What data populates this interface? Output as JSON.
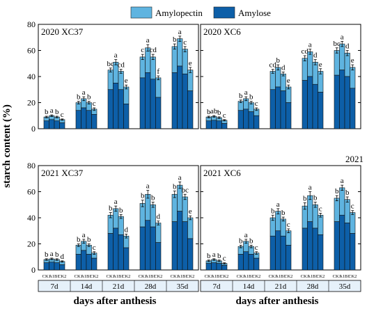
{
  "legend": {
    "amylopectin": "Amylopectin",
    "amylose": "Amylose",
    "amylopectin_color": "#5fb4e0",
    "amylose_color": "#0d5fa8"
  },
  "ylabel": "starch content (%)",
  "xlabel": "days after anthesis",
  "extra_label": "2021",
  "chart_data": [
    {
      "type": "bar",
      "stacked": true,
      "title": "2020  XC37",
      "groups": [
        "7d",
        "14d",
        "21d",
        "28d",
        "35d"
      ],
      "sublabels": [
        "CK1",
        "A1",
        "B1",
        "CK2"
      ],
      "ylim": [
        0,
        80
      ],
      "yticks": [
        0,
        20,
        40,
        60,
        80
      ],
      "total": [
        [
          9,
          10,
          9,
          7
        ],
        [
          20,
          23,
          20,
          15
        ],
        [
          45,
          51,
          44,
          32
        ],
        [
          55,
          62,
          55,
          39
        ],
        [
          63,
          69,
          61,
          45
        ]
      ],
      "amylose": [
        [
          6,
          7,
          6,
          4.5
        ],
        [
          14,
          16,
          14,
          11
        ],
        [
          30,
          35,
          30,
          19
        ],
        [
          39,
          43,
          38,
          24
        ],
        [
          43,
          48,
          42,
          29
        ]
      ],
      "letters": [
        [
          "b",
          "a",
          "b",
          "c"
        ],
        [
          "b",
          "a",
          "b",
          "c"
        ],
        [
          "bc",
          "a",
          "cd",
          "e"
        ],
        [
          "c",
          "a",
          "cd",
          "f"
        ],
        [
          "b",
          "a",
          "c",
          "e"
        ]
      ],
      "err": [
        [
          0.6,
          0.6,
          0.6,
          0.5
        ],
        [
          1,
          1.5,
          1,
          1
        ],
        [
          1.5,
          2,
          1.5,
          1.5
        ],
        [
          2,
          2.5,
          2,
          1.5
        ],
        [
          2,
          2,
          2,
          2
        ]
      ]
    },
    {
      "type": "bar",
      "stacked": true,
      "title": "2020  XC6",
      "groups": [
        "7d",
        "14d",
        "21d",
        "28d",
        "35d"
      ],
      "sublabels": [
        "CK1",
        "A1",
        "B1",
        "CK2"
      ],
      "ylim": [
        0,
        80
      ],
      "yticks": [
        0,
        20,
        40,
        60,
        80
      ],
      "total": [
        [
          9,
          9.5,
          8.5,
          6.5
        ],
        [
          21,
          23,
          20,
          15
        ],
        [
          44,
          47,
          42,
          32
        ],
        [
          54,
          59,
          51,
          44
        ],
        [
          60,
          65,
          58,
          47
        ]
      ],
      "amylose": [
        [
          6,
          6.5,
          6,
          4
        ],
        [
          14,
          15,
          13,
          10
        ],
        [
          30,
          32,
          29,
          20
        ],
        [
          37,
          40,
          34,
          28
        ],
        [
          41,
          45,
          40,
          31
        ]
      ],
      "letters": [
        [
          "b",
          "ab",
          "b",
          "c"
        ],
        [
          "b",
          "a",
          "b",
          "c"
        ],
        [
          "cd",
          "b",
          "d",
          "e"
        ],
        [
          "cd",
          "a",
          "d",
          "e"
        ],
        [
          "bc",
          "a",
          "d",
          "e"
        ]
      ],
      "err": [
        [
          0.6,
          0.6,
          0.6,
          0.5
        ],
        [
          1,
          1.5,
          1,
          1
        ],
        [
          1.5,
          2,
          1.5,
          1.5
        ],
        [
          2,
          2,
          2,
          2
        ],
        [
          2,
          2,
          2,
          2
        ]
      ]
    },
    {
      "type": "bar",
      "stacked": true,
      "title": "2021  XC37",
      "groups": [
        "7d",
        "14d",
        "21d",
        "28d",
        "35d"
      ],
      "sublabels": [
        "CK1",
        "A1",
        "B1",
        "CK2"
      ],
      "ylim": [
        0,
        80
      ],
      "yticks": [
        0,
        20,
        40,
        60,
        80
      ],
      "total": [
        [
          8,
          8.5,
          8,
          6.5
        ],
        [
          19,
          22,
          19,
          13
        ],
        [
          42,
          47,
          41,
          26
        ],
        [
          51,
          58,
          50,
          36
        ],
        [
          58,
          65,
          56,
          40
        ]
      ],
      "amylose": [
        [
          5.5,
          6,
          5.5,
          4
        ],
        [
          12,
          15,
          12,
          9
        ],
        [
          28,
          32,
          27,
          17
        ],
        [
          33,
          38,
          33,
          21
        ],
        [
          37,
          45,
          37,
          24
        ]
      ],
      "letters": [
        [
          "b",
          "a",
          "b",
          "d"
        ],
        [
          "b",
          "a",
          "b",
          "c"
        ],
        [
          "b",
          "a",
          "b",
          "d"
        ],
        [
          "b",
          "a",
          "b",
          "d"
        ],
        [
          "b",
          "a",
          "bc",
          "e"
        ]
      ],
      "err": [
        [
          0.6,
          0.6,
          0.6,
          0.5
        ],
        [
          1,
          1.5,
          1,
          1
        ],
        [
          2,
          2,
          1.5,
          1.5
        ],
        [
          2.5,
          3,
          2,
          1.5
        ],
        [
          2.5,
          2.5,
          2,
          1.5
        ]
      ]
    },
    {
      "type": "bar",
      "stacked": true,
      "title": "2021  XC6",
      "groups": [
        "7d",
        "14d",
        "21d",
        "28d",
        "35d"
      ],
      "sublabels": [
        "CK1",
        "A1",
        "B1",
        "CK2"
      ],
      "ylim": [
        0,
        80
      ],
      "yticks": [
        0,
        20,
        40,
        60,
        80
      ],
      "total": [
        [
          7,
          8,
          7,
          5
        ],
        [
          18,
          22,
          18,
          13
        ],
        [
          40,
          45,
          39,
          30
        ],
        [
          49,
          57,
          50,
          42
        ],
        [
          55,
          63,
          54,
          44
        ]
      ],
      "amylose": [
        [
          5,
          5.5,
          5,
          3.5
        ],
        [
          12,
          14,
          12,
          9
        ],
        [
          26,
          30,
          26,
          19
        ],
        [
          32,
          37,
          32,
          27
        ],
        [
          37,
          42,
          36,
          28
        ]
      ],
      "letters": [
        [
          "b",
          "a",
          "b",
          "c"
        ],
        [
          "b",
          "a",
          "b",
          "c"
        ],
        [
          "b",
          "a",
          "b",
          "c"
        ],
        [
          "b",
          "a",
          "b",
          "c"
        ],
        [
          "b",
          "a",
          "b",
          "c"
        ]
      ],
      "err": [
        [
          0.6,
          0.6,
          0.6,
          0.5
        ],
        [
          1,
          1.5,
          1,
          1
        ],
        [
          2,
          2,
          1.5,
          1.5
        ],
        [
          2.5,
          3,
          2,
          1.5
        ],
        [
          2,
          2,
          2,
          1.5
        ]
      ]
    }
  ]
}
